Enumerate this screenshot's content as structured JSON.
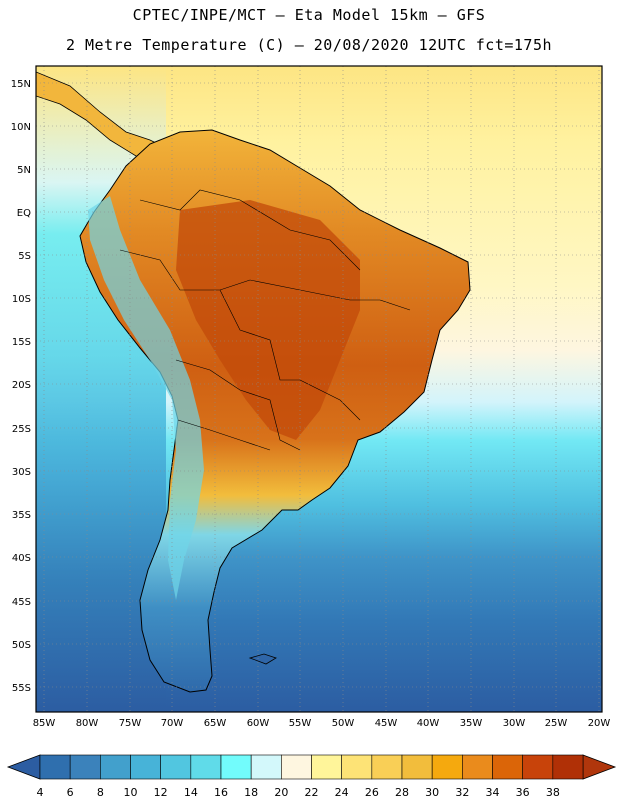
{
  "title_line1": "CPTEC/INPE/MCT –  Eta Model 15km – GFS",
  "title_line2": "2 Metre Temperature (C) – 20/08/2020 12UTC fct=175h",
  "lat_labels": [
    "15N",
    "10N",
    "5N",
    "EQ",
    "5S",
    "10S",
    "15S",
    "20S",
    "25S",
    "30S",
    "35S",
    "40S",
    "45S",
    "50S",
    "55S"
  ],
  "lon_labels": [
    "85W",
    "80W",
    "75W",
    "70W",
    "65W",
    "60W",
    "55W",
    "50W",
    "45W",
    "40W",
    "35W",
    "30W",
    "25W",
    "20W"
  ],
  "colorbar": {
    "labels": [
      "4",
      "6",
      "8",
      "10",
      "12",
      "14",
      "16",
      "18",
      "20",
      "22",
      "24",
      "26",
      "28",
      "30",
      "32",
      "34",
      "36",
      "38"
    ],
    "colors": [
      "#2f6fae",
      "#3b82bb",
      "#42a0cc",
      "#47b3d8",
      "#51c6e0",
      "#60dbe9",
      "#72fcfc",
      "#d3f8fb",
      "#fef6e0",
      "#fff59a",
      "#fde376",
      "#f9cf56",
      "#f2bd3c",
      "#f5a90e",
      "#ea8b1c",
      "#db6508",
      "#c8430a",
      "#b03006"
    ],
    "end_colors": [
      "#2c5da2",
      "#b0360c"
    ]
  },
  "ocean_color": "#2f66a8"
}
